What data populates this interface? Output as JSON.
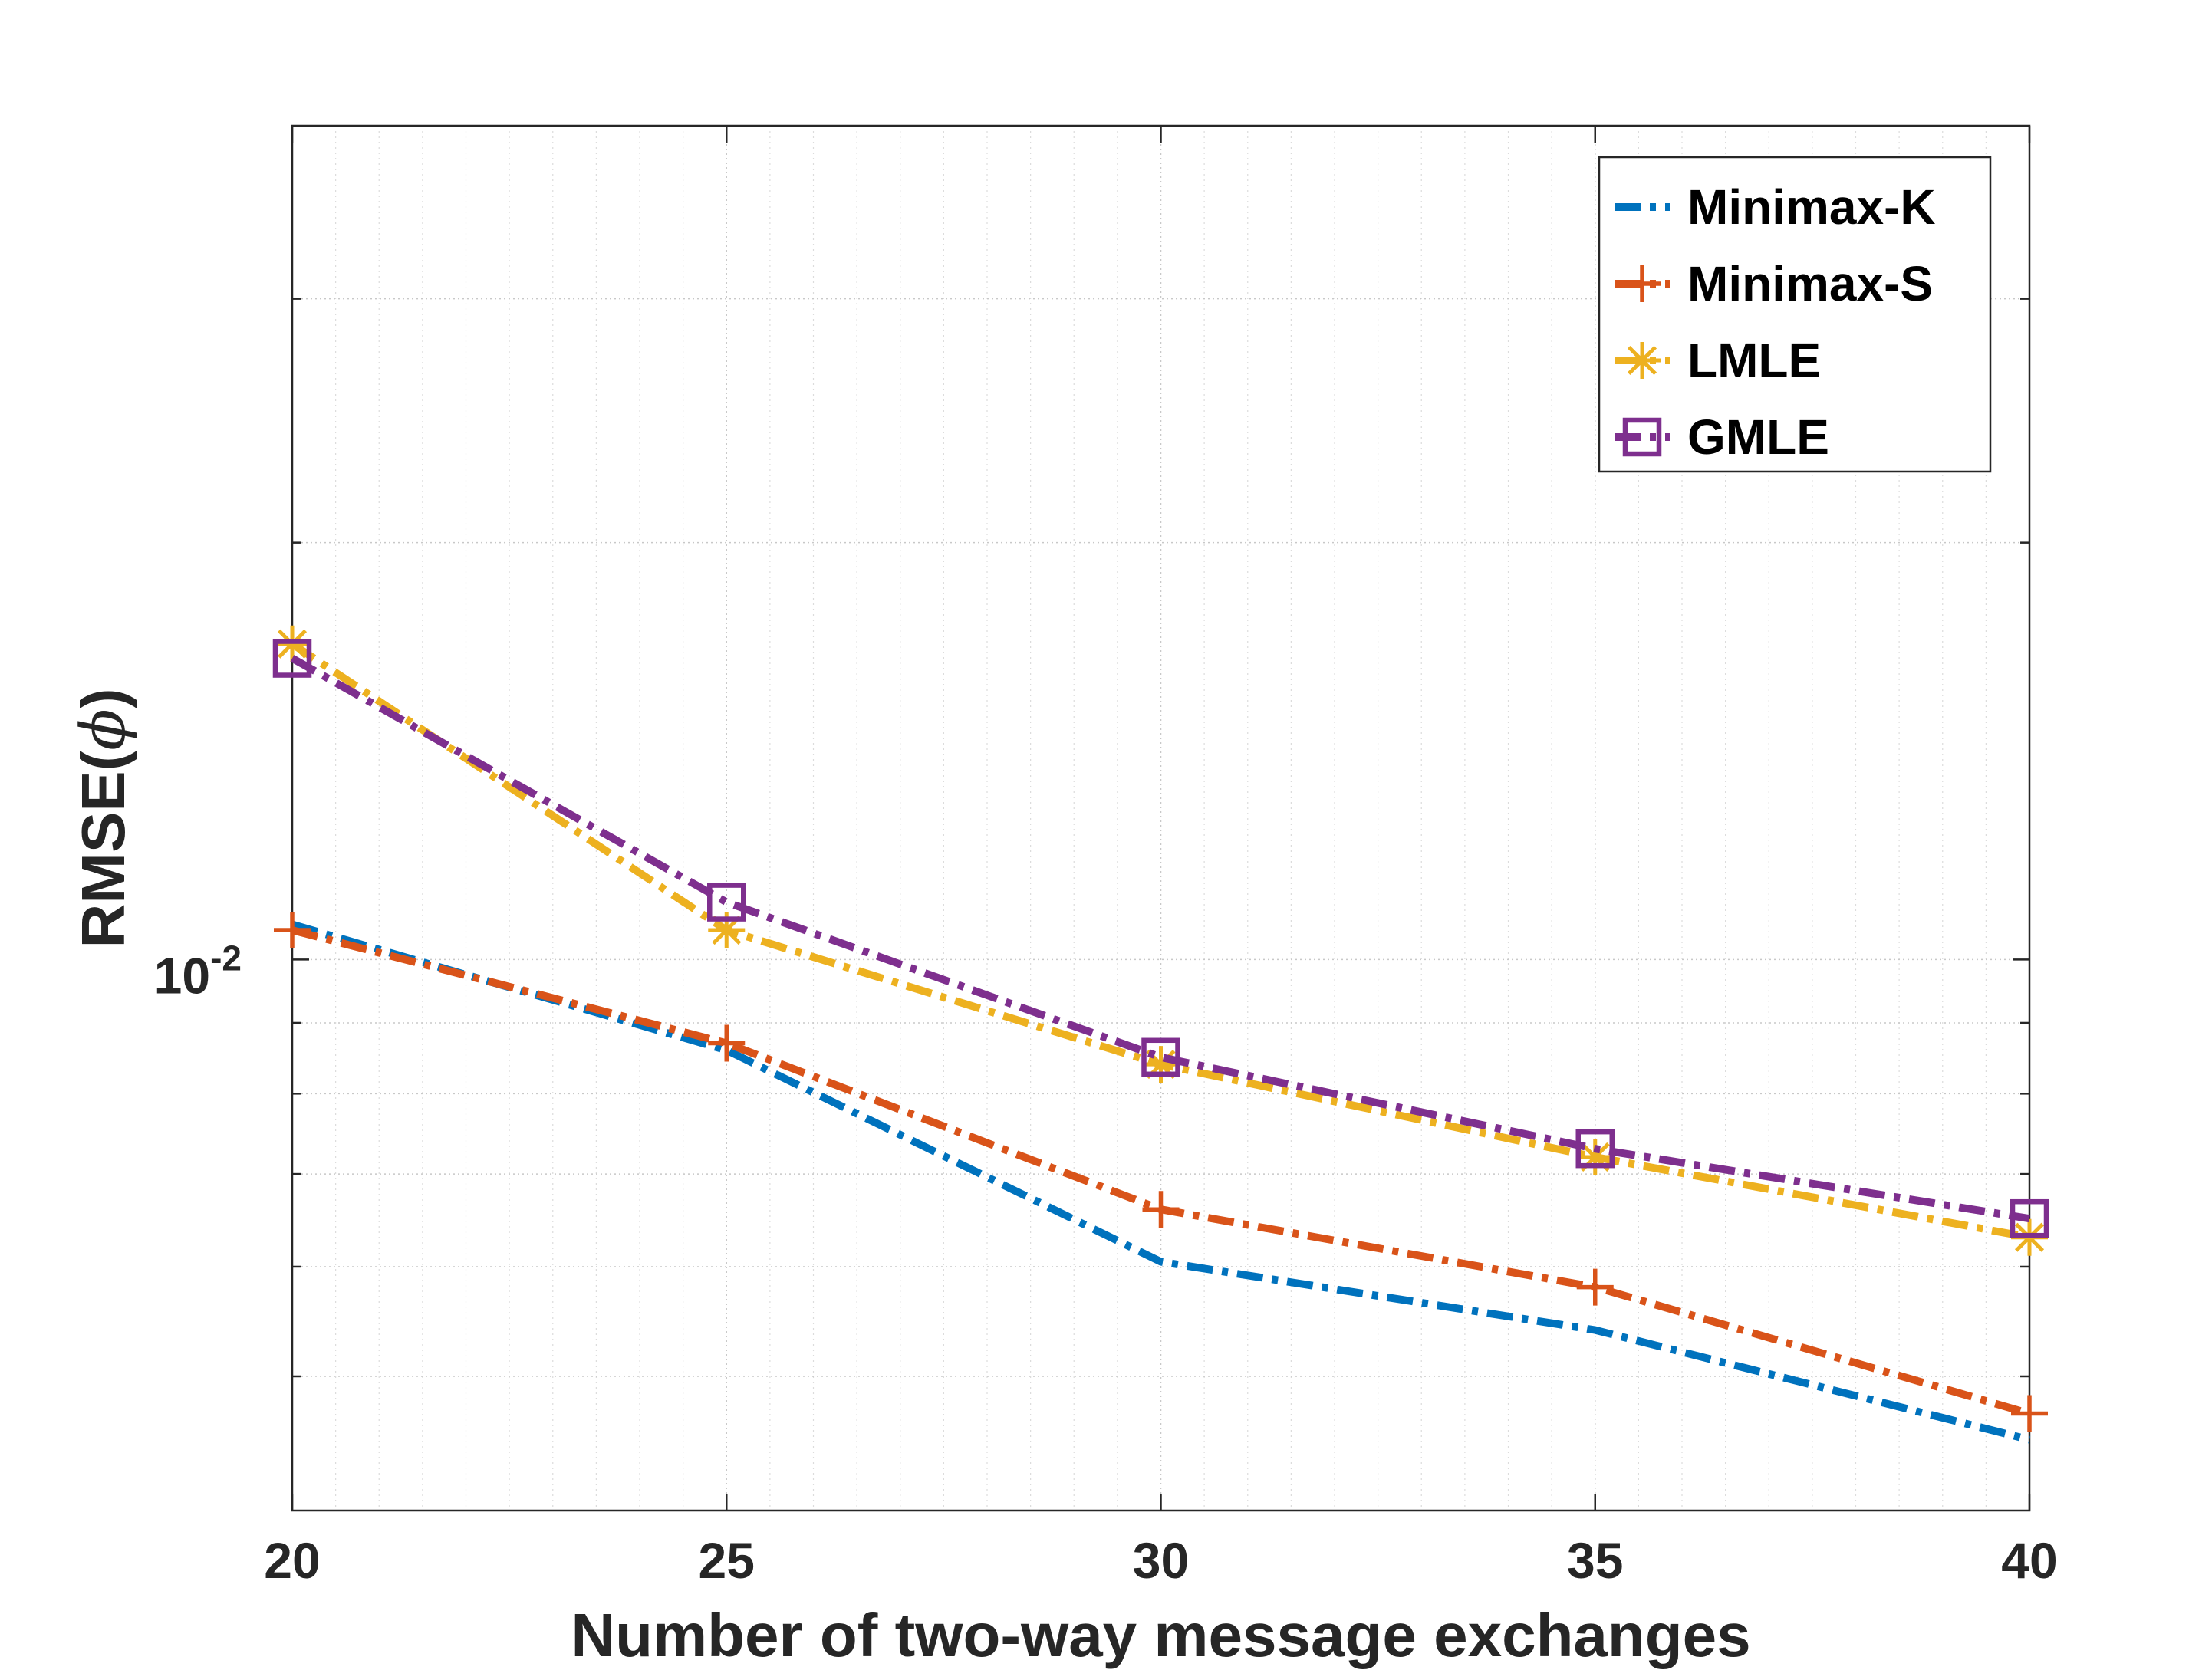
{
  "chart_data": {
    "type": "line",
    "xlabel": "Number of two-way message exchanges",
    "ylabel_main": "RMSE(",
    "ylabel_symbol": "ϕ",
    "ylabel_close": ")",
    "x_ticks": [
      20,
      25,
      30,
      35,
      40
    ],
    "x_tick_labels": [
      "20",
      "25",
      "30",
      "35",
      "40"
    ],
    "xlim": [
      20,
      40
    ],
    "ylim": [
      0.004,
      0.04
    ],
    "y_scale": "log",
    "y_tick_base": "10",
    "y_tick_exponent": "-2",
    "y_tick_value": 0.01,
    "grid": true,
    "minor_grid": true,
    "legend_location": "top-right",
    "x": [
      20,
      25,
      30,
      35,
      40
    ],
    "series": [
      {
        "name": "Minimax-K",
        "color": "#0072BD",
        "marker": "none",
        "line_style": "dash-dot",
        "values": [
          0.0106,
          0.0086,
          0.00605,
          0.0054,
          0.0045
        ]
      },
      {
        "name": "Minimax-S",
        "color": "#D95319",
        "marker": "plus",
        "line_style": "dash-dot",
        "values": [
          0.0105,
          0.0087,
          0.0066,
          0.0058,
          0.0047
        ]
      },
      {
        "name": "LMLE",
        "color": "#EDB120",
        "marker": "asterisk",
        "line_style": "dash-dot",
        "values": [
          0.0169,
          0.0105,
          0.0084,
          0.0072,
          0.0063
        ]
      },
      {
        "name": "GMLE",
        "color": "#7E2F8E",
        "marker": "square",
        "line_style": "dash-dot",
        "values": [
          0.0165,
          0.011,
          0.0085,
          0.0073,
          0.0065
        ]
      }
    ]
  }
}
